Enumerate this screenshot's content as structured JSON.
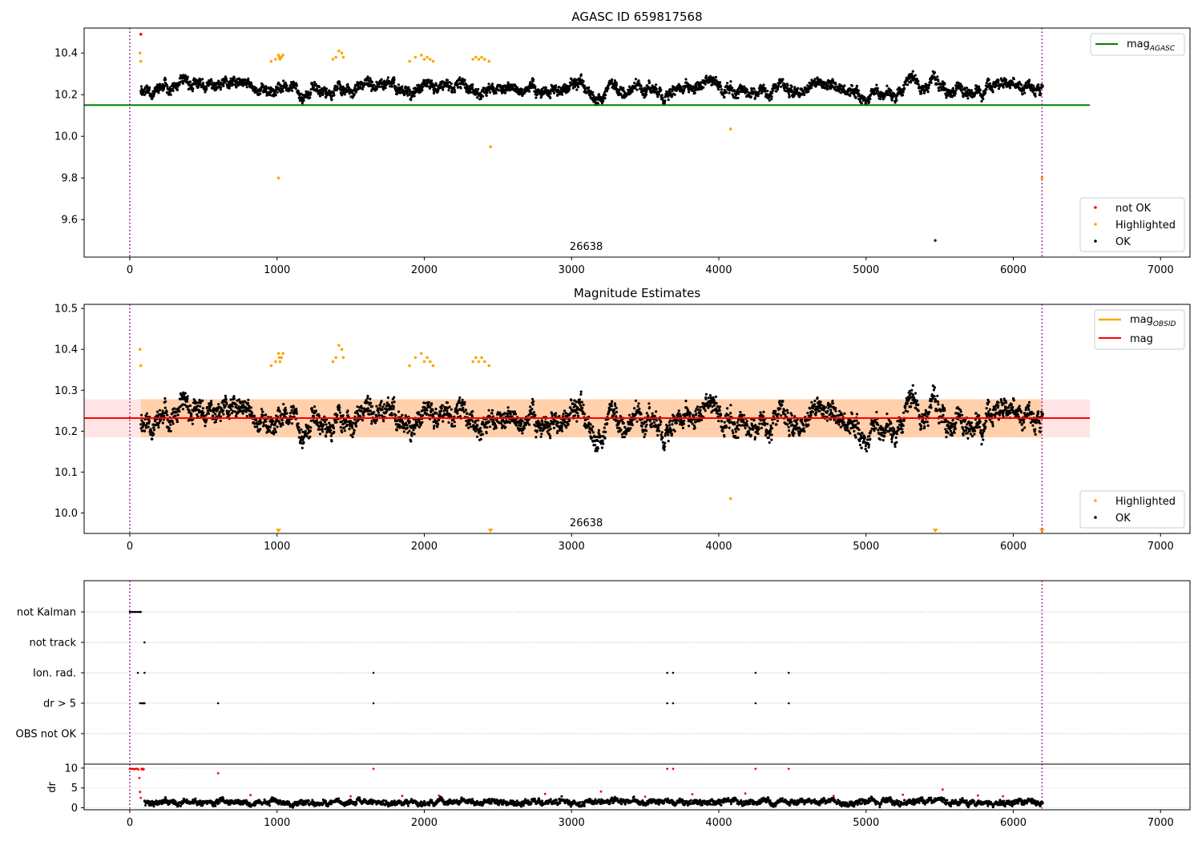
{
  "chart_data": [
    {
      "type": "scatter",
      "title": "AGASC ID 659817568",
      "xlabel": "",
      "ylabel": "",
      "xlim": [
        -310,
        7200
      ],
      "ylim": [
        9.42,
        10.52
      ],
      "xticks": [
        0,
        1000,
        2000,
        3000,
        4000,
        5000,
        6000,
        7000
      ],
      "yticks": [
        9.6,
        9.8,
        10.0,
        10.2,
        10.4
      ],
      "ytick_labels": [
        "9.6",
        "9.8",
        "10.0",
        "10.2",
        "10.4"
      ],
      "annotation": "26638",
      "annotation_x": 3100,
      "vlines": [
        0,
        6195
      ],
      "reference_line": {
        "name": "mag_AGASC",
        "value": 10.15,
        "x_range": [
          -310,
          6520
        ],
        "color": "#008000"
      },
      "legend_lines": {
        "position": "upper right",
        "entries": [
          {
            "label": "mag",
            "subscript": "AGASC",
            "color": "#008000"
          }
        ]
      },
      "legend_points": {
        "position": "lower right",
        "entries": [
          {
            "label": "not OK",
            "color": "#ff0000"
          },
          {
            "label": "Highlighted",
            "color": "#ffa500"
          },
          {
            "label": "OK",
            "color": "#000000"
          }
        ]
      },
      "series": [
        {
          "name": "not OK",
          "color": "#ff0000",
          "x": [
            75
          ],
          "y": [
            10.49
          ]
        },
        {
          "name": "Highlighted",
          "color": "#ffa500",
          "x": [
            70,
            75,
            960,
            990,
            1010,
            1015,
            1020,
            1030,
            1040,
            1380,
            1400,
            1420,
            1440,
            1450,
            1900,
            1940,
            1980,
            2000,
            2020,
            2040,
            2060,
            2330,
            2350,
            2370,
            2390,
            2410,
            2440,
            4080,
            1010,
            2450,
            6195
          ],
          "y": [
            10.4,
            10.36,
            10.36,
            10.37,
            10.39,
            10.38,
            10.37,
            10.38,
            10.39,
            10.37,
            10.38,
            10.41,
            10.4,
            10.38,
            10.36,
            10.38,
            10.39,
            10.37,
            10.38,
            10.37,
            10.36,
            10.37,
            10.38,
            10.37,
            10.38,
            10.37,
            10.36,
            10.035,
            9.8,
            9.95,
            9.8
          ]
        },
        {
          "name": "OK",
          "color": "#000000",
          "generator": "random-walk",
          "x_range": [
            75,
            6200
          ],
          "count": 3100,
          "mean": 10.23,
          "spread": 0.06
        },
        {
          "name": "OK (outlier)",
          "color": "#000000",
          "x": [
            5470
          ],
          "y": [
            9.5
          ]
        }
      ]
    },
    {
      "type": "scatter",
      "title": "Magnitude Estimates",
      "xlabel": "",
      "ylabel": "",
      "xlim": [
        -310,
        7200
      ],
      "ylim": [
        9.95,
        10.51
      ],
      "xticks": [
        0,
        1000,
        2000,
        3000,
        4000,
        5000,
        6000,
        7000
      ],
      "yticks": [
        10.0,
        10.1,
        10.2,
        10.3,
        10.4,
        10.5
      ],
      "ytick_labels": [
        "10.0",
        "10.1",
        "10.2",
        "10.3",
        "10.4",
        "10.5"
      ],
      "annotation": "26638",
      "annotation_x": 3100,
      "vlines": [
        0,
        6195
      ],
      "bands": [
        {
          "name": "mag_OBSID range",
          "y": [
            10.185,
            10.278
          ],
          "x_range": [
            75,
            6195
          ],
          "color": "#ffa500",
          "opacity": 0.25
        },
        {
          "name": "mag range",
          "y": [
            10.185,
            10.278
          ],
          "x_range": [
            -310,
            6520
          ],
          "color": "#ff0000",
          "opacity": 0.1
        }
      ],
      "reference_lines": [
        {
          "name": "mag_OBSID",
          "value": 10.232,
          "x_range": [
            75,
            6195
          ],
          "color": "#ffa500"
        },
        {
          "name": "mag",
          "value": 10.232,
          "x_range": [
            -310,
            6520
          ],
          "color": "#ff0000"
        }
      ],
      "legend_lines": {
        "position": "upper right",
        "entries": [
          {
            "label": "mag",
            "subscript": "OBSID",
            "color": "#ffa500"
          },
          {
            "label": "mag",
            "subscript": "",
            "color": "#ff0000"
          }
        ]
      },
      "legend_points": {
        "position": "lower right",
        "entries": [
          {
            "label": "Highlighted",
            "color": "#ffa500"
          },
          {
            "label": "OK",
            "color": "#000000"
          }
        ]
      },
      "series": [
        {
          "name": "Highlighted",
          "color": "#ffa500",
          "x": [
            70,
            75,
            960,
            990,
            1010,
            1015,
            1020,
            1030,
            1040,
            1380,
            1400,
            1420,
            1440,
            1450,
            1900,
            1940,
            1980,
            2000,
            2020,
            2040,
            2060,
            2330,
            2350,
            2370,
            2390,
            2410,
            2440,
            4080
          ],
          "y": [
            10.4,
            10.36,
            10.36,
            10.37,
            10.39,
            10.38,
            10.37,
            10.38,
            10.39,
            10.37,
            10.38,
            10.41,
            10.4,
            10.38,
            10.36,
            10.38,
            10.39,
            10.37,
            10.38,
            10.37,
            10.36,
            10.37,
            10.38,
            10.37,
            10.38,
            10.37,
            10.36,
            10.035
          ]
        },
        {
          "name": "OK",
          "color": "#000000",
          "generator": "random-walk",
          "x_range": [
            75,
            6200
          ],
          "count": 3100,
          "mean": 10.23,
          "spread": 0.06
        },
        {
          "name": "below range",
          "marker": "triangle-down",
          "color": "#ffa500",
          "x": [
            1010,
            2450,
            5470,
            6195
          ]
        }
      ]
    },
    {
      "type": "scatter",
      "title": "",
      "xlabel": "",
      "ylabel": "",
      "xlim": [
        -310,
        7200
      ],
      "categories": [
        "not Kalman",
        "not track",
        "Ion. rad.",
        "dr > 5",
        "OBS not OK"
      ],
      "category_points": {
        "not Kalman": [
          0,
          10,
          20,
          30,
          40,
          50,
          60,
          70,
          75
        ],
        "not track": [
          100
        ],
        "Ion. rad.": [
          55,
          100,
          1655,
          3650,
          3690,
          4250,
          4475
        ],
        "dr > 5": [
          70,
          80,
          90,
          95,
          100,
          600,
          1655,
          3650,
          3690,
          4250,
          4475
        ],
        "OBS not OK": []
      },
      "vlines": [
        0,
        6195
      ]
    },
    {
      "type": "scatter",
      "title": "",
      "xlabel": "",
      "ylabel": "dr",
      "xlim": [
        -310,
        7200
      ],
      "ylim": [
        -0.5,
        11
      ],
      "yticks": [
        0,
        5,
        10
      ],
      "ytick_labels": [
        "0",
        "5",
        "10"
      ],
      "vlines": [
        0,
        6195
      ],
      "series": [
        {
          "name": "dr",
          "color": "#000000",
          "generator": "random-walk",
          "x_range": [
            100,
            6200
          ],
          "count": 2800,
          "mean": 1.4,
          "spread": 0.8
        },
        {
          "name": "dr > 5 (red)",
          "color": "#ff0000",
          "x": [
            0,
            10,
            20,
            30,
            40,
            50,
            60,
            65,
            70,
            75,
            80,
            85,
            90,
            95,
            600,
            1655,
            3650,
            3690,
            4250,
            4475,
            820,
            1500,
            1850,
            2100,
            2820,
            3200,
            3500,
            3820,
            4180,
            4780,
            5250,
            5520,
            5760,
            5930
          ],
          "y": [
            9.8,
            9.8,
            9.8,
            9.7,
            9.8,
            9.8,
            9.6,
            7.5,
            4.0,
            2.5,
            9.8,
            9.6,
            9.8,
            9.7,
            8.7,
            9.8,
            9.8,
            9.8,
            9.8,
            9.8,
            3.2,
            2.9,
            3.0,
            3.1,
            3.5,
            4.1,
            2.8,
            3.4,
            3.6,
            3.0,
            3.3,
            4.6,
            3.1,
            2.9
          ]
        }
      ]
    }
  ]
}
